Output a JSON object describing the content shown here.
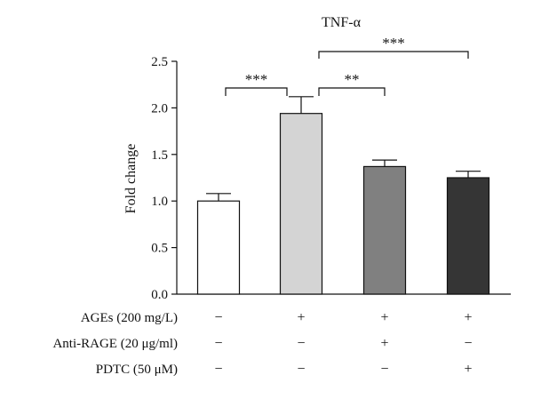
{
  "chart_data": {
    "type": "bar",
    "title": "TNF-α",
    "xlabel": "",
    "ylabel": "Fold change",
    "ylim": [
      0,
      2.5
    ],
    "yticks": [
      "0.0",
      "0.5",
      "1.0",
      "1.5",
      "2.0",
      "2.5"
    ],
    "grid": false,
    "series": [
      {
        "values": [
          1.0,
          1.94,
          1.37,
          1.25
        ],
        "errors": [
          0.08,
          0.18,
          0.07,
          0.07
        ],
        "colors": [
          "#ffffff",
          "#d4d4d4",
          "#808080",
          "#353535"
        ]
      }
    ],
    "treatment_rows": [
      {
        "label": "AGEs (200 mg/L)",
        "signs": [
          "−",
          "+",
          "+",
          "+"
        ]
      },
      {
        "label": "Anti-RAGE (20 μg/ml)",
        "signs": [
          "−",
          "−",
          "+",
          "−"
        ]
      },
      {
        "label": "PDTC (50 μM)",
        "signs": [
          "−",
          "−",
          "−",
          "+"
        ]
      }
    ],
    "significance": [
      {
        "from": 0,
        "to": 1,
        "label": "***"
      },
      {
        "from": 1,
        "to": 2,
        "label": "**"
      },
      {
        "from": 1,
        "to": 3,
        "label": "***"
      }
    ]
  }
}
